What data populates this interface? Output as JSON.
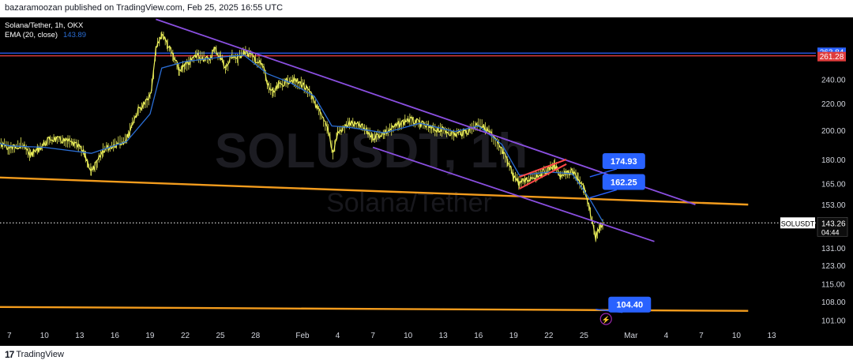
{
  "publisher": "bazaramoozan published on TradingView.com, Feb 25, 2025 16:55 UTC",
  "footer": {
    "logo_text": "TradingView",
    "logo_mark": "17"
  },
  "legend": {
    "symbol": "Solana/Tether, 1h, OKX",
    "ema_label": "EMA (20, close)",
    "ema_value": "143.89"
  },
  "watermark": {
    "ticker": "SOLUSDT, 1h",
    "name": "Solana/Tether"
  },
  "colors": {
    "background": "#000000",
    "candles": "#ecf05a",
    "ema": "#2a6dd4",
    "channel": "#8a4fe0",
    "support": "#f39c1d",
    "wedge": "#ff4848",
    "hline_blue": "#2a62ff",
    "hline_red": "#e03c3c",
    "callout": "#2962ff",
    "axis_text": "#d1d4dc"
  },
  "chart_data": {
    "type": "candlestick",
    "symbol": "SOLUSDT",
    "timeframe": "1h",
    "exchange": "OKX",
    "y_scale": "log",
    "ylim": [
      98,
      300
    ],
    "price_ticks": [
      "240.00",
      "220.00",
      "200.00",
      "180.00",
      "165.00",
      "153.00",
      "143.26",
      "131.00",
      "123.00",
      "115.00",
      "108.00",
      "101.00"
    ],
    "axis_tick_values": [
      240,
      220,
      200,
      180,
      165,
      153,
      131,
      123,
      115,
      108,
      101
    ],
    "x_ticks": [
      "7",
      "10",
      "13",
      "16",
      "19",
      "22",
      "25",
      "28",
      "Feb",
      "4",
      "7",
      "10",
      "13",
      "16",
      "19",
      "22",
      "25",
      "Mar",
      "4",
      "7",
      "10",
      "13"
    ],
    "x_tick_days": [
      -25,
      -22,
      -19,
      -16,
      -13,
      -10,
      -7,
      -4,
      0,
      3,
      6,
      9,
      12,
      15,
      18,
      21,
      24,
      28,
      31,
      34,
      37,
      40
    ],
    "price_path": [
      {
        "day": -31,
        "price": 222
      },
      {
        "day": -30,
        "price": 210
      },
      {
        "day": -29.5,
        "price": 198
      },
      {
        "day": -28.5,
        "price": 192
      },
      {
        "day": -27,
        "price": 189
      },
      {
        "day": -26,
        "price": 193
      },
      {
        "day": -25,
        "price": 187
      },
      {
        "day": -24,
        "price": 190
      },
      {
        "day": -23.2,
        "price": 183
      },
      {
        "day": -22.5,
        "price": 187
      },
      {
        "day": -21.5,
        "price": 194
      },
      {
        "day": -20,
        "price": 192
      },
      {
        "day": -19,
        "price": 188
      },
      {
        "day": -18.5,
        "price": 182
      },
      {
        "day": -18,
        "price": 172
      },
      {
        "day": -17.5,
        "price": 178
      },
      {
        "day": -17,
        "price": 186
      },
      {
        "day": -16,
        "price": 190
      },
      {
        "day": -15,
        "price": 193
      },
      {
        "day": -14.5,
        "price": 205
      },
      {
        "day": -14,
        "price": 215
      },
      {
        "day": -13,
        "price": 225
      },
      {
        "day": -12.7,
        "price": 245
      },
      {
        "day": -12.5,
        "price": 268
      },
      {
        "day": -12,
        "price": 283
      },
      {
        "day": -11.5,
        "price": 272
      },
      {
        "day": -11,
        "price": 260
      },
      {
        "day": -10.5,
        "price": 248
      },
      {
        "day": -10,
        "price": 252
      },
      {
        "day": -9,
        "price": 262
      },
      {
        "day": -8,
        "price": 257
      },
      {
        "day": -7.5,
        "price": 268
      },
      {
        "day": -7,
        "price": 260
      },
      {
        "day": -6.5,
        "price": 250
      },
      {
        "day": -6,
        "price": 262
      },
      {
        "day": -5.5,
        "price": 258
      },
      {
        "day": -5,
        "price": 266
      },
      {
        "day": -4,
        "price": 258
      },
      {
        "day": -3.3,
        "price": 250
      },
      {
        "day": -3,
        "price": 236
      },
      {
        "day": -2.5,
        "price": 228
      },
      {
        "day": -2,
        "price": 235
      },
      {
        "day": -1,
        "price": 240
      },
      {
        "day": 0,
        "price": 236
      },
      {
        "day": 0.8,
        "price": 226
      },
      {
        "day": 1.5,
        "price": 212
      },
      {
        "day": 2.2,
        "price": 200
      },
      {
        "day": 2.6,
        "price": 184
      },
      {
        "day": 3,
        "price": 198
      },
      {
        "day": 4,
        "price": 205
      },
      {
        "day": 5,
        "price": 203
      },
      {
        "day": 6,
        "price": 195
      },
      {
        "day": 7,
        "price": 198
      },
      {
        "day": 8,
        "price": 203
      },
      {
        "day": 9,
        "price": 208
      },
      {
        "day": 10,
        "price": 205
      },
      {
        "day": 11,
        "price": 201
      },
      {
        "day": 12,
        "price": 200
      },
      {
        "day": 13,
        "price": 197
      },
      {
        "day": 14,
        "price": 199
      },
      {
        "day": 15,
        "price": 205
      },
      {
        "day": 16,
        "price": 198
      },
      {
        "day": 17,
        "price": 186
      },
      {
        "day": 17.5,
        "price": 178
      },
      {
        "day": 18,
        "price": 170
      },
      {
        "day": 18.5,
        "price": 165
      },
      {
        "day": 19,
        "price": 167
      },
      {
        "day": 20,
        "price": 170
      },
      {
        "day": 21,
        "price": 174
      },
      {
        "day": 21.5,
        "price": 176
      },
      {
        "day": 22,
        "price": 170
      },
      {
        "day": 23,
        "price": 172
      },
      {
        "day": 23.5,
        "price": 168
      },
      {
        "day": 24,
        "price": 162
      },
      {
        "day": 24.4,
        "price": 152
      },
      {
        "day": 24.7,
        "price": 144
      },
      {
        "day": 25,
        "price": 136
      },
      {
        "day": 25.3,
        "price": 140
      },
      {
        "day": 25.6,
        "price": 143.26
      }
    ],
    "ema_path": [
      {
        "day": -31,
        "price": 216
      },
      {
        "day": -28,
        "price": 195
      },
      {
        "day": -25,
        "price": 189
      },
      {
        "day": -22,
        "price": 188
      },
      {
        "day": -18,
        "price": 184
      },
      {
        "day": -15,
        "price": 192
      },
      {
        "day": -13,
        "price": 212
      },
      {
        "day": -12,
        "price": 250
      },
      {
        "day": -10,
        "price": 256
      },
      {
        "day": -7,
        "price": 260
      },
      {
        "day": -5,
        "price": 262
      },
      {
        "day": -3,
        "price": 245
      },
      {
        "day": -1,
        "price": 237
      },
      {
        "day": 1,
        "price": 226
      },
      {
        "day": 2.5,
        "price": 203
      },
      {
        "day": 4,
        "price": 202
      },
      {
        "day": 7,
        "price": 198
      },
      {
        "day": 10,
        "price": 205
      },
      {
        "day": 13,
        "price": 199
      },
      {
        "day": 15,
        "price": 203
      },
      {
        "day": 17,
        "price": 190
      },
      {
        "day": 18.5,
        "price": 170
      },
      {
        "day": 21,
        "price": 172
      },
      {
        "day": 23,
        "price": 171
      },
      {
        "day": 24.5,
        "price": 156
      },
      {
        "day": 25.6,
        "price": 143.89
      }
    ],
    "trendlines": [
      {
        "name": "channel-upper",
        "kind": "channel",
        "from": {
          "day": -12.5,
          "price": 298
        },
        "to": {
          "day": 33.5,
          "price": 153
        }
      },
      {
        "name": "channel-lower",
        "kind": "channel",
        "from": {
          "day": 6,
          "price": 188
        },
        "to": {
          "day": 30,
          "price": 134
        }
      },
      {
        "name": "support-upper",
        "kind": "support",
        "from": {
          "day": -31,
          "price": 170
        },
        "to": {
          "day": 38,
          "price": 153
        }
      },
      {
        "name": "support-lower",
        "kind": "support",
        "from": {
          "day": -31,
          "price": 106
        },
        "to": {
          "day": 38,
          "price": 104.4
        }
      },
      {
        "name": "wedge-top",
        "kind": "wedge",
        "from": {
          "day": 18.5,
          "price": 169
        },
        "to": {
          "day": 22.5,
          "price": 180
        }
      },
      {
        "name": "wedge-bottom",
        "kind": "wedge",
        "from": {
          "day": 18.5,
          "price": 162
        },
        "to": {
          "day": 22.5,
          "price": 177
        }
      }
    ],
    "horizontal_levels": [
      {
        "price": 263.84,
        "label": "263.84",
        "color": "#2a62ff"
      },
      {
        "price": 261.28,
        "label": "261.28",
        "color": "#e03c3c"
      }
    ],
    "last_price": {
      "price": 143.26,
      "label": "143.26",
      "tag": "SOLUSDT",
      "countdown": "04:44"
    },
    "callouts": [
      {
        "label": "174.93",
        "day": 24.5,
        "price": 174.93
      },
      {
        "label": "162.25",
        "day": 24.5,
        "price": 162.25
      },
      {
        "label": "104.40",
        "day": 25.0,
        "price": 104.4
      }
    ],
    "event_marker": {
      "day": 25,
      "symbol": "⚡"
    }
  }
}
